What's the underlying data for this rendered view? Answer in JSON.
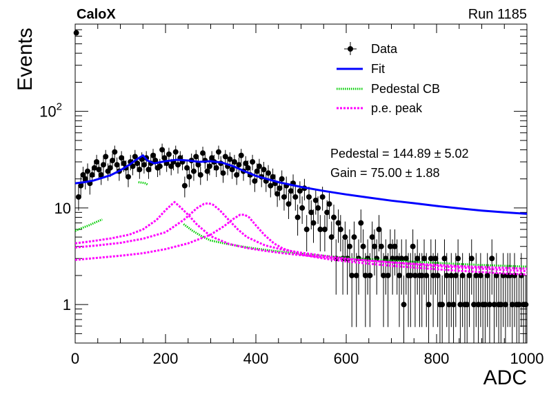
{
  "experiment_label": "CaloX",
  "run_label": "Run 1185",
  "legend": {
    "data": "Data",
    "fit": "Fit",
    "pedestal": "Pedestal CB",
    "pe_peak": "p.e. peak"
  },
  "fit_results": {
    "pedestal": "Pedestal = 144.89 ± 5.02",
    "gain": "Gain = 75.00 ± 1.88"
  },
  "colors": {
    "data": "#000000",
    "fit": "#0000ff",
    "pedestal": "#00cc00",
    "pe_peak": "#ff00ff"
  },
  "chart_data": {
    "type": "scatter",
    "title": "",
    "xlabel": "ADC",
    "ylabel": "Events",
    "xlim": [
      0,
      1000
    ],
    "ylim": [
      0.4,
      800
    ],
    "yscale": "log",
    "x_ticks": [
      0,
      200,
      400,
      600,
      800,
      1000
    ],
    "x_tick_labels": [
      "0",
      "200",
      "400",
      "600",
      "800",
      "1000"
    ],
    "y_tick_labels": [
      {
        "value": 1,
        "label": "1"
      },
      {
        "value": 10,
        "label": "10"
      },
      {
        "value": 100,
        "label": "10",
        "sup": "2"
      }
    ],
    "series": [
      {
        "name": "Data",
        "kind": "points",
        "x": [
          0,
          5,
          10,
          15,
          20,
          25,
          30,
          35,
          40,
          45,
          50,
          55,
          60,
          65,
          70,
          75,
          80,
          85,
          90,
          95,
          100,
          105,
          110,
          115,
          120,
          125,
          130,
          135,
          140,
          145,
          150,
          155,
          160,
          165,
          170,
          175,
          180,
          185,
          190,
          195,
          200,
          205,
          210,
          215,
          220,
          225,
          230,
          235,
          240,
          245,
          250,
          255,
          260,
          265,
          270,
          275,
          280,
          285,
          290,
          295,
          300,
          305,
          310,
          315,
          320,
          325,
          330,
          335,
          340,
          345,
          350,
          355,
          360,
          365,
          370,
          375,
          380,
          385,
          390,
          395,
          400,
          405,
          410,
          415,
          420,
          425,
          430,
          435,
          440,
          445,
          450,
          455,
          460,
          465,
          470,
          475,
          480,
          485,
          490,
          495,
          500,
          505,
          510,
          515,
          520,
          525,
          530,
          535,
          540,
          545,
          550,
          555,
          560,
          565,
          570,
          575,
          580,
          585,
          590,
          595,
          600,
          605,
          610,
          615,
          620,
          625,
          630,
          635,
          640,
          645,
          650,
          655,
          660,
          665,
          670,
          675,
          680,
          685,
          690,
          695,
          700,
          705,
          710,
          715,
          720,
          725,
          730,
          735,
          740,
          745,
          750,
          755,
          760,
          765,
          770,
          775,
          780,
          785,
          790,
          795,
          800,
          805,
          810,
          815,
          820,
          825,
          830,
          835,
          840,
          845,
          850,
          855,
          860,
          865,
          870,
          875,
          880,
          885,
          890,
          895,
          900,
          905,
          910,
          915,
          920,
          925,
          930,
          935,
          940,
          945,
          950,
          955,
          960,
          965,
          970,
          975,
          980,
          985,
          990,
          995
        ],
        "y": [
          650,
          13,
          17,
          22,
          20,
          24,
          18,
          22,
          26,
          30,
          25,
          22,
          28,
          34,
          24,
          26,
          31,
          38,
          28,
          24,
          33,
          29,
          26,
          21,
          30,
          27,
          34,
          29,
          25,
          32,
          28,
          33,
          25,
          29,
          35,
          31,
          26,
          27,
          40,
          33,
          29,
          36,
          27,
          30,
          38,
          28,
          33,
          30,
          17,
          26,
          21,
          31,
          24,
          34,
          28,
          22,
          37,
          31,
          24,
          27,
          33,
          30,
          26,
          38,
          29,
          23,
          34,
          27,
          32,
          25,
          30,
          22,
          28,
          35,
          24,
          29,
          26,
          22,
          30,
          19,
          24,
          27,
          21,
          25,
          19,
          23,
          17,
          21,
          18,
          14,
          16,
          20,
          13,
          17,
          11,
          15,
          18,
          13,
          8,
          15,
          10,
          16,
          6,
          13,
          9,
          7,
          12,
          10,
          6,
          13,
          6,
          9,
          11,
          5,
          8,
          3,
          7,
          6,
          3,
          5,
          3,
          4,
          2,
          5,
          2,
          3,
          7,
          4,
          2,
          3,
          2,
          5,
          4,
          3,
          6,
          4,
          2,
          3,
          2,
          4,
          3,
          4,
          3,
          2,
          3,
          1,
          3,
          2,
          2,
          4,
          2,
          3,
          2,
          2,
          3,
          2,
          1,
          3,
          2,
          3,
          2,
          1,
          1,
          3,
          2,
          1,
          2,
          1,
          2,
          3,
          1,
          2,
          1,
          1,
          2,
          3,
          1,
          2,
          1,
          2,
          1,
          1,
          2,
          1,
          3,
          1,
          2,
          1,
          1,
          2,
          1,
          2,
          2,
          1,
          2,
          1,
          1,
          2,
          1,
          1
        ]
      },
      {
        "name": "Fit",
        "kind": "line",
        "x": [
          0,
          20,
          40,
          60,
          80,
          100,
          120,
          135,
          150,
          160,
          175,
          200,
          225,
          250,
          275,
          300,
          325,
          350,
          375,
          400,
          450,
          500,
          550,
          600,
          650,
          700,
          750,
          800,
          850,
          900,
          950,
          1000
        ],
        "y": [
          18,
          18.5,
          19.2,
          20.5,
          22,
          24.5,
          28,
          31.5,
          35,
          31,
          29,
          30.5,
          31.5,
          31,
          30,
          30.5,
          29.5,
          27,
          24,
          21.5,
          18.5,
          16.5,
          15,
          13.8,
          12.8,
          11.9,
          11.2,
          10.5,
          9.9,
          9.4,
          9,
          8.7
        ]
      },
      {
        "name": "Pedestal CB",
        "kind": "dotted",
        "segments": [
          {
            "x": [
              0,
              15,
              30,
              45,
              60
            ],
            "y": [
              5.8,
              6.2,
              6.6,
              7.1,
              7.6
            ]
          },
          {
            "x": [
              140,
              150,
              155,
              160
            ],
            "y": [
              18.5,
              18.2,
              18,
              17.5
            ]
          },
          {
            "x": [
              240,
              260,
              280,
              300,
              330,
              360,
              400,
              450,
              500,
              550,
              600,
              650,
              700,
              750,
              800,
              850,
              900,
              950,
              1000
            ],
            "y": [
              6.8,
              5.8,
              5.1,
              4.6,
              4.3,
              4.05,
              3.8,
              3.55,
              3.35,
              3.2,
              3.05,
              2.95,
              2.85,
              2.77,
              2.7,
              2.63,
              2.57,
              2.52,
              2.47
            ]
          }
        ]
      },
      {
        "name": "p.e. peak",
        "kind": "dotted",
        "segments": [
          {
            "x": [
              0,
              40,
              80,
              120,
              150,
              180,
              200,
              215,
              220,
              230,
              250,
              270,
              300,
              340,
              380,
              420,
              460,
              500,
              550,
              600,
              650,
              700,
              750,
              800,
              850,
              900,
              950,
              1000
            ],
            "y": [
              4.3,
              4.55,
              4.85,
              5.3,
              6,
              7.5,
              9.5,
              11,
              11.5,
              10.5,
              8.5,
              6.7,
              5.1,
              4.25,
              3.85,
              3.6,
              3.4,
              3.25,
              3.1,
              2.95,
              2.85,
              2.75,
              2.65,
              2.58,
              2.5,
              2.45,
              2.4,
              2.35
            ]
          },
          {
            "x": [
              0,
              50,
              100,
              150,
              200,
              240,
              270,
              285,
              295,
              305,
              320,
              340,
              360,
              380,
              420,
              460,
              500,
              550,
              600,
              650,
              700,
              750,
              800,
              850,
              900,
              950,
              1000
            ],
            "y": [
              3.9,
              4.1,
              4.35,
              4.8,
              5.6,
              7.5,
              10,
              11,
              11.2,
              10.8,
              9.5,
              7.5,
              6,
              5,
              4.1,
              3.7,
              3.45,
              3.2,
              3,
              2.85,
              2.72,
              2.6,
              2.5,
              2.42,
              2.35,
              2.28,
              2.22
            ]
          },
          {
            "x": [
              0,
              50,
              100,
              150,
              200,
              250,
              300,
              330,
              350,
              365,
              375,
              385,
              400,
              420,
              440,
              460,
              500,
              550,
              600,
              650,
              700,
              750,
              800,
              850,
              900,
              950,
              1000
            ],
            "y": [
              2.9,
              3.05,
              3.2,
              3.4,
              3.75,
              4.3,
              5.3,
              6.5,
              7.7,
              8.5,
              8.5,
              8,
              6.6,
              5.2,
              4.3,
              3.8,
              3.3,
              3,
              2.8,
              2.65,
              2.52,
              2.42,
              2.32,
              2.24,
              2.17,
              2.1,
              2.05
            ]
          }
        ]
      }
    ],
    "legend_position": "top-right",
    "grid": false
  }
}
